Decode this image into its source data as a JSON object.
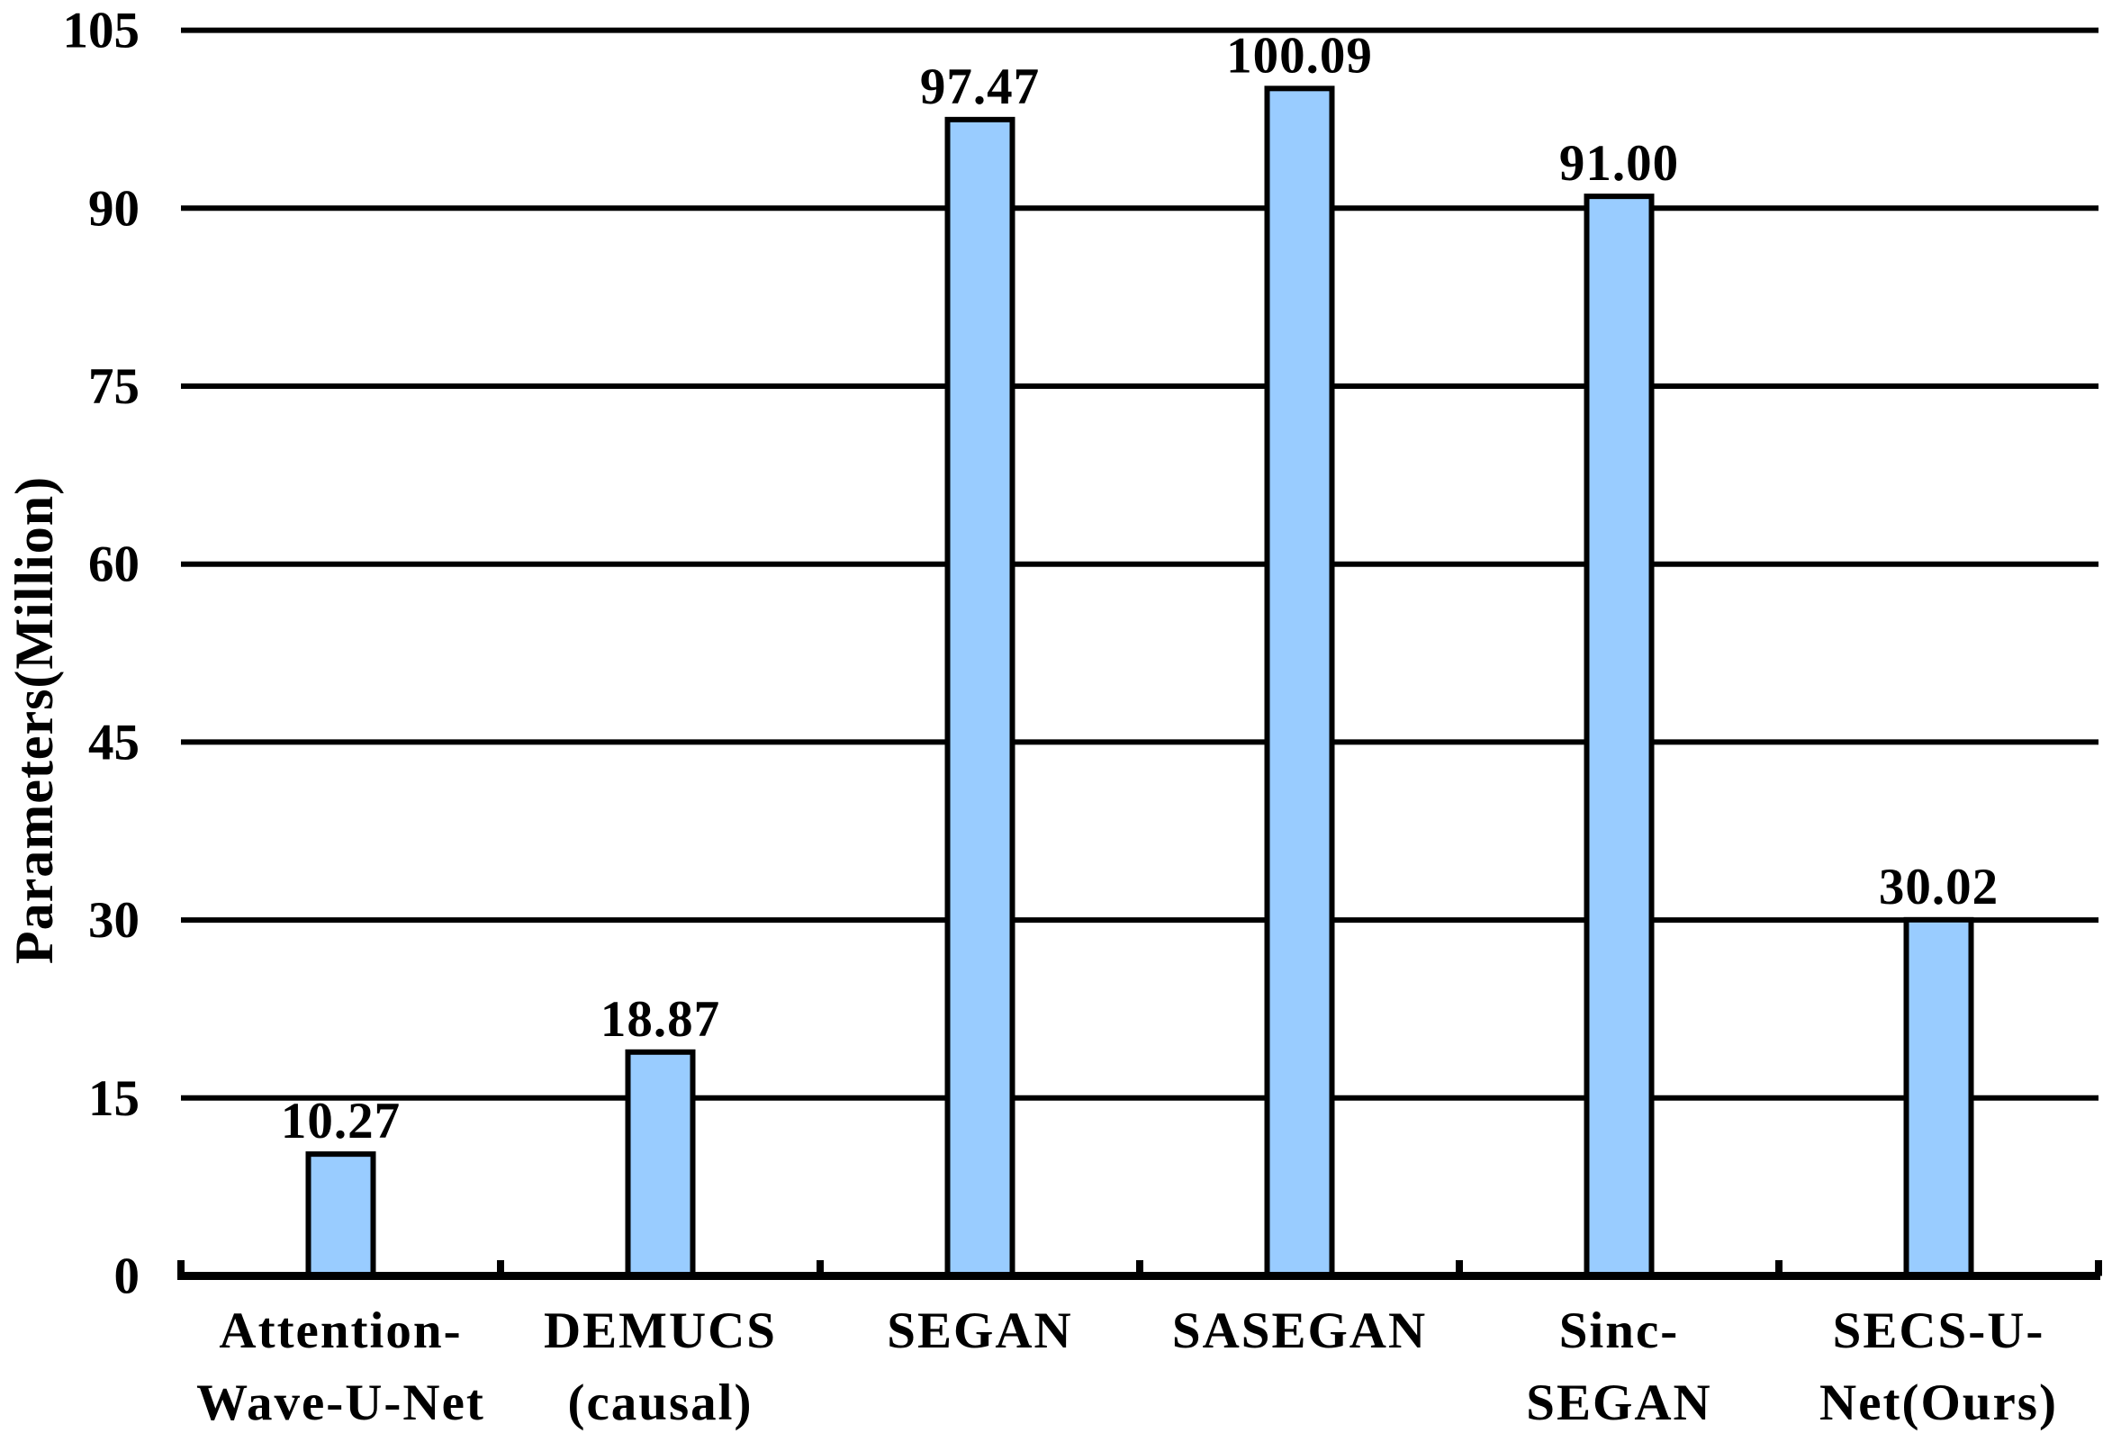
{
  "chart_data": {
    "type": "bar",
    "title": "",
    "ylabel": "Parameters(Million)",
    "xlabel": "",
    "categories": [
      "Attention-Wave-U-Net",
      "DEMUCS (causal)",
      "SEGAN",
      "SASEGAN",
      "Sinc-SEGAN",
      "SECS-U-Net(Ours)"
    ],
    "category_lines": [
      [
        "Attention-",
        "Wave-U-Net"
      ],
      [
        "DEMUCS",
        "(causal)"
      ],
      [
        "SEGAN"
      ],
      [
        "SASEGAN"
      ],
      [
        "Sinc-",
        "SEGAN"
      ],
      [
        "SECS-U-",
        "Net(Ours)"
      ]
    ],
    "values": [
      10.27,
      18.87,
      97.47,
      100.09,
      91.0,
      30.02
    ],
    "value_labels": [
      "10.27",
      "18.87",
      "97.47",
      "100.09",
      "91.00",
      "30.02"
    ],
    "yticks": [
      0,
      15,
      30,
      45,
      60,
      75,
      90,
      105
    ],
    "ylim": [
      0,
      105
    ],
    "grid": "horizontal-only",
    "legend_position": "none",
    "colors": {
      "bar_fill": "#99CCFF",
      "bar_stroke": "#000000",
      "gridline": "#000000",
      "axis": "#000000",
      "text": "#000000",
      "background": "#FFFFFF"
    }
  }
}
